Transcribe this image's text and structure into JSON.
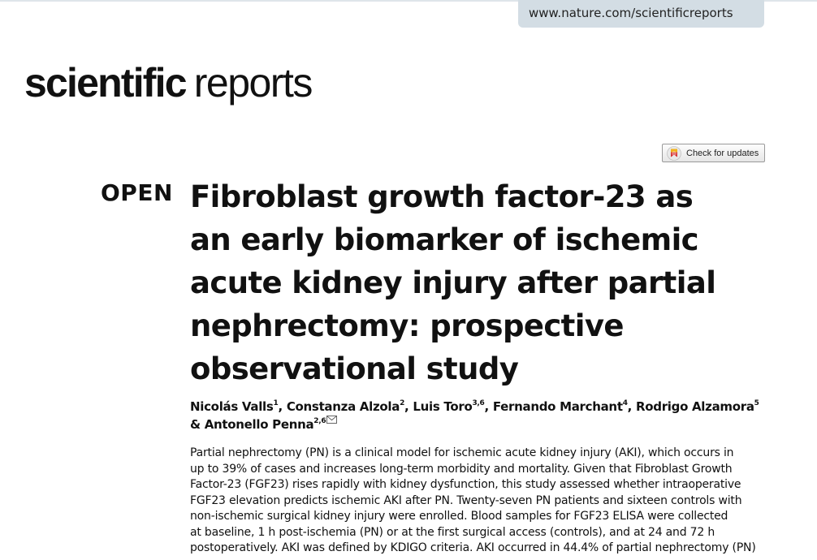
{
  "header": {
    "url": "www.nature.com/scientificreports",
    "logo_bold": "scientific",
    "logo_regular": "reports",
    "check_updates_label": "Check for updates"
  },
  "article": {
    "access_label": "OPEN",
    "title_lines": [
      "Fibroblast growth factor-23 as",
      "an early biomarker of ischemic",
      "acute kidney injury after partial",
      "nephrectomy: prospective",
      "observational study"
    ],
    "authors": [
      {
        "name": "Nicolás Valls",
        "aff": "1"
      },
      {
        "name": "Constanza Alzola",
        "aff": "2"
      },
      {
        "name": "Luis Toro",
        "aff": "3,6"
      },
      {
        "name": "Fernando Marchant",
        "aff": "4"
      },
      {
        "name": "Rodrigo Alzamora",
        "aff": "5"
      },
      {
        "name": "Antonello Penna",
        "aff": "2,6"
      }
    ],
    "author_separator": ",",
    "author_conjunction": "&",
    "abstract_lines": [
      "Partial nephrectomy (PN) is a clinical model for ischemic acute kidney injury (AKI), which occurs in",
      "up to 39% of cases and increases long-term morbidity and mortality. Given that Fibroblast Growth",
      "Factor-23 (FGF23) rises rapidly with kidney dysfunction, this study assessed whether intraoperative",
      "FGF23 elevation predicts ischemic AKI after PN. Twenty-seven PN patients and sixteen controls with",
      "non-ischemic surgical kidney injury were enrolled. Blood samples for FGF23 ELISA were collected",
      "at baseline, 1 h post-ischemia (PN) or at the first surgical access (controls), and at 24 and 72 h",
      "postoperatively. AKI was defined by KDIGO criteria. AKI occurred in 44.4% of partial nephrectomy (PN)"
    ]
  }
}
